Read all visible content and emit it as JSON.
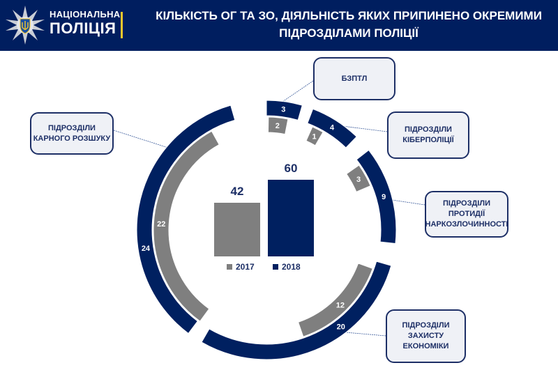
{
  "header": {
    "brand_top": "НАЦІОНАЛЬНА",
    "brand_bottom": "ПОЛІЦІЯ",
    "title": "КІЛЬКІСТЬ ОГ ТА ЗО, ДІЯЛЬНІСТЬ ЯКИХ ПРИПИНЕНО ОКРЕМИМИ ПІДРОЗДІЛАМИ ПОЛІЦІЇ",
    "logo_icon": "police-star-trident-icon"
  },
  "colors": {
    "header_bg": "#001E5F",
    "accent_yellow": "#F5C72C",
    "series_2017": "#7F7F7F",
    "series_2018": "#002060",
    "callout_bg": "#EFF1F6",
    "callout_border": "#1D2F66"
  },
  "callouts": {
    "criminal": "ПІДРОЗДІЛИ\nКАРНОГО РОЗШУКУ",
    "bzptl": "БЗПТЛ",
    "cyber": "ПІДРОЗДІЛИ\nКІБЕРПОЛІЦІЇ",
    "drugs": "ПІДРОЗДІЛИ\nПРОТИДІЇ\nНАРКОЗЛОЧИННОСТІ",
    "economy": "ПІДРОЗДІЛИ\nЗАХИСТУ\nЕКОНОМІКИ"
  },
  "totals": {
    "v2017": "42",
    "v2018": "60"
  },
  "legend": {
    "l2017": "2017",
    "l2018": "2018"
  },
  "chart_data": [
    {
      "type": "bar",
      "title": "КІЛЬКІСТЬ ОГ ТА ЗО, ДІЯЛЬНІСТЬ ЯКИХ ПРИПИНЕНО ОКРЕМИМИ ПІДРОЗДІЛАМИ ПОЛІЦІЇ",
      "categories": [
        "2017",
        "2018"
      ],
      "values": [
        42,
        60
      ],
      "legend": [
        "2017",
        "2018"
      ],
      "legend_position": "bottom"
    },
    {
      "type": "pie",
      "subtype": "radial-ring",
      "categories": [
        "Підрозділи карного розшуку",
        "БЗПТЛ",
        "Підрозділи кіберполіції",
        "Підрозділи протидії наркозлочинності",
        "Підрозділи захисту економіки"
      ],
      "series": [
        {
          "name": "2017",
          "values": [
            22,
            2,
            1,
            3,
            12
          ]
        },
        {
          "name": "2018",
          "values": [
            24,
            3,
            4,
            9,
            20
          ]
        }
      ],
      "arcs": {
        "2017": [
          {
            "label": "22",
            "start": 216,
            "end": 331
          },
          {
            "label": "2",
            "start": 1,
            "end": 11
          },
          {
            "label": "1",
            "start": 24,
            "end": 30
          },
          {
            "label": "3",
            "start": 55,
            "end": 67
          },
          {
            "label": "12",
            "start": 110,
            "end": 161
          }
        ],
        "2018": [
          {
            "label": "24",
            "start": 217,
            "end": 344
          },
          {
            "label": "3",
            "start": 0,
            "end": 16
          },
          {
            "label": "4",
            "start": 21,
            "end": 44
          },
          {
            "label": "9",
            "start": 52,
            "end": 96
          },
          {
            "label": "20",
            "start": 106,
            "end": 210
          }
        ]
      }
    }
  ]
}
